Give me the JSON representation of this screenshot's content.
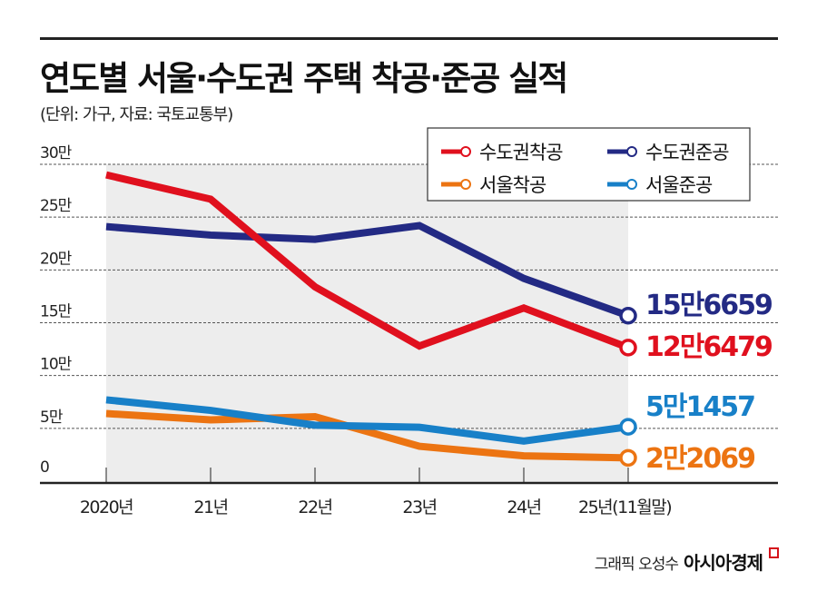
{
  "header": {
    "title": "연도별 서울·수도권 주택 착공·준공 실적",
    "subtitle": "(단위: 가구, 자료: 국토교통부)"
  },
  "credit": {
    "byline": "그래픽 오성수",
    "brand": "아시아경제"
  },
  "chart_data": {
    "type": "line",
    "title": "연도별 서울·수도권 주택 착공·준공 실적",
    "xlabel": "",
    "ylabel": "",
    "categories": [
      "2020년",
      "21년",
      "22년",
      "23년",
      "24년",
      "25년(11월말)"
    ],
    "yticks": [
      {
        "value": 0,
        "label": "0"
      },
      {
        "value": 5,
        "label": "5만"
      },
      {
        "value": 10,
        "label": "10만"
      },
      {
        "value": 15,
        "label": "15만"
      },
      {
        "value": 20,
        "label": "20만"
      },
      {
        "value": 25,
        "label": "25만"
      },
      {
        "value": 30,
        "label": "30만"
      }
    ],
    "ylim": [
      0,
      30
    ],
    "unit": "만 가구",
    "grid": true,
    "legend_position": "top-right",
    "series": [
      {
        "name": "수도권착공",
        "color": "#e0101e",
        "values": [
          29.0,
          26.7,
          18.4,
          12.8,
          16.4,
          12.6479
        ],
        "end_label": "12만6479"
      },
      {
        "name": "수도권준공",
        "color": "#232a84",
        "values": [
          24.1,
          23.3,
          22.9,
          24.2,
          19.2,
          15.6659
        ],
        "end_label": "15만6659"
      },
      {
        "name": "서울착공",
        "color": "#ec7412",
        "values": [
          6.4,
          5.8,
          6.1,
          3.3,
          2.4,
          2.2069
        ],
        "end_label": "2만2069"
      },
      {
        "name": "서울준공",
        "color": "#1880c8",
        "values": [
          7.7,
          6.7,
          5.3,
          5.1,
          3.8,
          5.1457
        ],
        "end_label": "5만1457"
      }
    ]
  }
}
